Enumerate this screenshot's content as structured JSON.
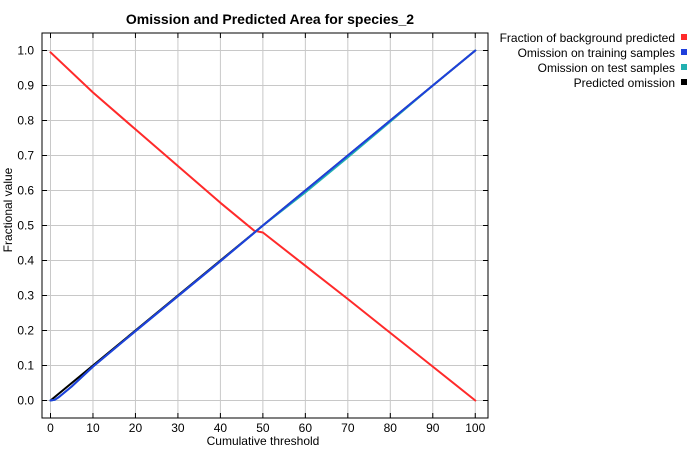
{
  "chart_data": {
    "type": "line",
    "title": "Omission and Predicted Area for species_2",
    "xlabel": "Cumulative threshold",
    "ylabel": "Fractional value",
    "xlim": [
      -2,
      103
    ],
    "ylim": [
      -0.05,
      1.05
    ],
    "xticks": [
      0,
      10,
      20,
      30,
      40,
      50,
      60,
      70,
      80,
      90,
      100
    ],
    "yticks": [
      0.0,
      0.1,
      0.2,
      0.3,
      0.4,
      0.5,
      0.6,
      0.7,
      0.8,
      0.9,
      1.0
    ],
    "ytick_labels": [
      "0.0",
      "0.1",
      "0.2",
      "0.3",
      "0.4",
      "0.5",
      "0.6",
      "0.7",
      "0.8",
      "0.9",
      "1.0"
    ],
    "grid": true,
    "legend_position": "top-right outside",
    "series": [
      {
        "name": "Fraction of background predicted",
        "color": "#ff2a2a",
        "x": [
          0,
          10,
          20,
          30,
          40,
          48,
          50,
          60,
          70,
          80,
          90,
          100
        ],
        "y": [
          0.995,
          0.88,
          0.775,
          0.67,
          0.565,
          0.485,
          0.48,
          0.385,
          0.29,
          0.193,
          0.097,
          0.0
        ]
      },
      {
        "name": "Omission on training samples",
        "color": "#1f3fdc",
        "x": [
          0,
          1,
          2,
          5,
          10,
          20,
          30,
          40,
          50,
          60,
          70,
          80,
          90,
          100
        ],
        "y": [
          0.0,
          0.002,
          0.01,
          0.04,
          0.097,
          0.198,
          0.298,
          0.398,
          0.5,
          0.6,
          0.7,
          0.8,
          0.9,
          1.0
        ]
      },
      {
        "name": "Omission on test samples",
        "color": "#22b0b0",
        "x": [
          0,
          1,
          2,
          5,
          10,
          20,
          30,
          40,
          50,
          60,
          62,
          70,
          80,
          90,
          100
        ],
        "y": [
          0.0,
          0.002,
          0.01,
          0.04,
          0.097,
          0.198,
          0.298,
          0.398,
          0.5,
          0.595,
          0.615,
          0.695,
          0.797,
          0.9,
          1.0
        ]
      },
      {
        "name": "Predicted omission",
        "color": "#000000",
        "x": [
          0,
          100
        ],
        "y": [
          0.0,
          1.0
        ]
      }
    ]
  }
}
